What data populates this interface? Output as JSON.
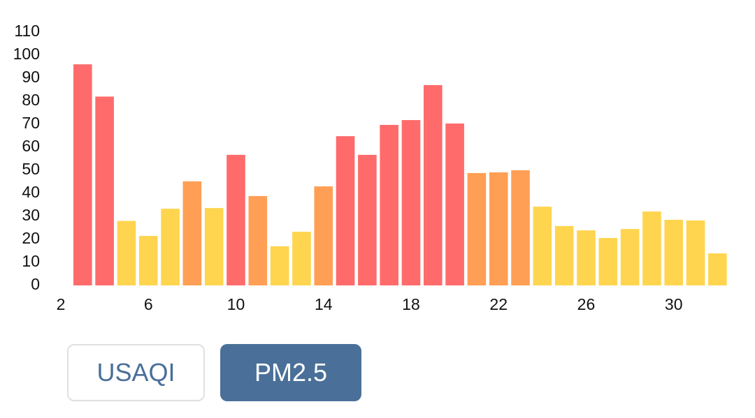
{
  "chart_data": {
    "type": "bar",
    "x": [
      3,
      4,
      5,
      6,
      7,
      8,
      9,
      10,
      11,
      12,
      13,
      14,
      15,
      16,
      17,
      18,
      19,
      20,
      21,
      22,
      23,
      24,
      25,
      26,
      27,
      28,
      29,
      30,
      31,
      32
    ],
    "values": [
      96,
      82,
      28,
      21.5,
      33.3,
      45.2,
      33.6,
      56.7,
      38.8,
      17,
      23.3,
      43,
      64.8,
      56.7,
      69.7,
      71.8,
      87,
      70.3,
      48.8,
      49.1,
      50,
      34.2,
      25.8,
      23.9,
      20.6,
      24.5,
      32.1,
      28.5,
      28.2,
      13.9
    ],
    "colors": [
      "#ff6b6b",
      "#ff6b6b",
      "#ffd54f",
      "#ffd54f",
      "#ffd54f",
      "#ff9f55",
      "#ffd54f",
      "#ff6b6b",
      "#ff9f55",
      "#ffd54f",
      "#ffd54f",
      "#ff9f55",
      "#ff6b6b",
      "#ff6b6b",
      "#ff6b6b",
      "#ff6b6b",
      "#ff6b6b",
      "#ff6b6b",
      "#ff9f55",
      "#ff9f55",
      "#ff9f55",
      "#ffd54f",
      "#ffd54f",
      "#ffd54f",
      "#ffd54f",
      "#ffd54f",
      "#ffd54f",
      "#ffd54f",
      "#ffd54f",
      "#ffd54f"
    ],
    "xlim": [
      2,
      32.5
    ],
    "xticks": [
      2,
      6,
      10,
      14,
      18,
      22,
      26,
      30
    ],
    "ylim": [
      0,
      110
    ],
    "yticks": [
      0,
      10,
      20,
      30,
      40,
      50,
      60,
      70,
      80,
      90,
      100,
      110
    ]
  },
  "buttons": [
    {
      "label": "USAQI"
    },
    {
      "label": "PM2.5"
    }
  ]
}
